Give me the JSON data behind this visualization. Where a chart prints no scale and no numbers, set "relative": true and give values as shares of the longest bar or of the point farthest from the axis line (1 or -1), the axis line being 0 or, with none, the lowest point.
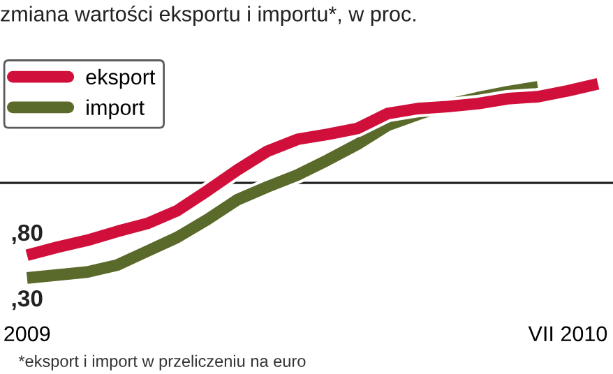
{
  "chart_data": {
    "type": "line",
    "relative": true,
    "title": "zmiana wartości eksportu i importu*, w proc.",
    "categories": [
      "2009",
      null,
      null,
      null,
      null,
      null,
      null,
      null,
      null,
      null,
      null,
      null,
      null,
      null,
      null,
      null,
      null,
      null,
      "VII 2010",
      null
    ],
    "series": [
      {
        "name": "eksport",
        "color": "#d0103a",
        "values": [
          -0.73,
          -0.65,
          -0.58,
          -0.49,
          -0.41,
          -0.28,
          -0.08,
          0.13,
          0.32,
          0.44,
          0.49,
          0.55,
          0.7,
          0.75,
          0.77,
          0.8,
          0.85,
          0.87,
          0.93,
          1.0
        ]
      },
      {
        "name": "import",
        "color": "#5a6a2a",
        "values": [
          -0.96,
          -0.93,
          -0.9,
          -0.83,
          -0.69,
          -0.55,
          -0.37,
          -0.17,
          -0.04,
          0.08,
          0.23,
          0.39,
          0.58,
          0.69,
          0.79,
          0.86,
          0.92,
          0.97,
          null,
          null
        ]
      }
    ],
    "legend": "top left",
    "grid": false,
    "tick_labels": "x",
    "marker": "none",
    "line_style": "solid",
    "annotations": [
      {
        "text": ",80",
        "x": "2009",
        "y": -0.73
      },
      {
        "text": ",30",
        "x": "2009",
        "y": -0.96
      },
      "*eksport i import w przeliczeniu na euro"
    ]
  }
}
